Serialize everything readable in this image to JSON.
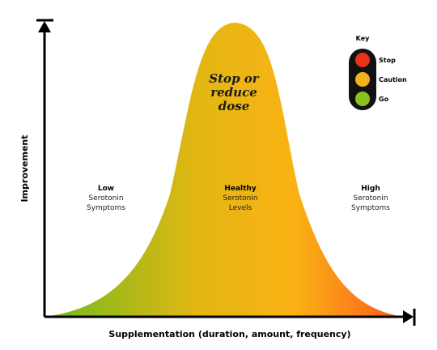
{
  "axes": {
    "x_label": "Supplementation (duration, amount, frequency)",
    "y_label": "Improvement"
  },
  "peak_text": [
    "Stop or",
    "reduce",
    "dose"
  ],
  "zones": {
    "left": {
      "title": "Low",
      "lines": [
        "Serotonin",
        "Symptoms"
      ]
    },
    "middle": {
      "title": "Healthy",
      "lines": [
        "Serotonin",
        "Levels"
      ]
    },
    "right": {
      "title": "High",
      "lines": [
        "Serotonin",
        "Symptoms"
      ]
    }
  },
  "legend": {
    "title": "Key",
    "items": [
      {
        "label": "Stop",
        "color": "#e8321c"
      },
      {
        "label": "Caution",
        "color": "#f2b21b"
      },
      {
        "label": "Go",
        "color": "#8cc21f"
      }
    ]
  },
  "colors": {
    "green": "#6dbb1f",
    "yellow": "#e2b713",
    "orange": "#fbb214",
    "red": "#fb5a1e",
    "light_housing": "#111111"
  }
}
